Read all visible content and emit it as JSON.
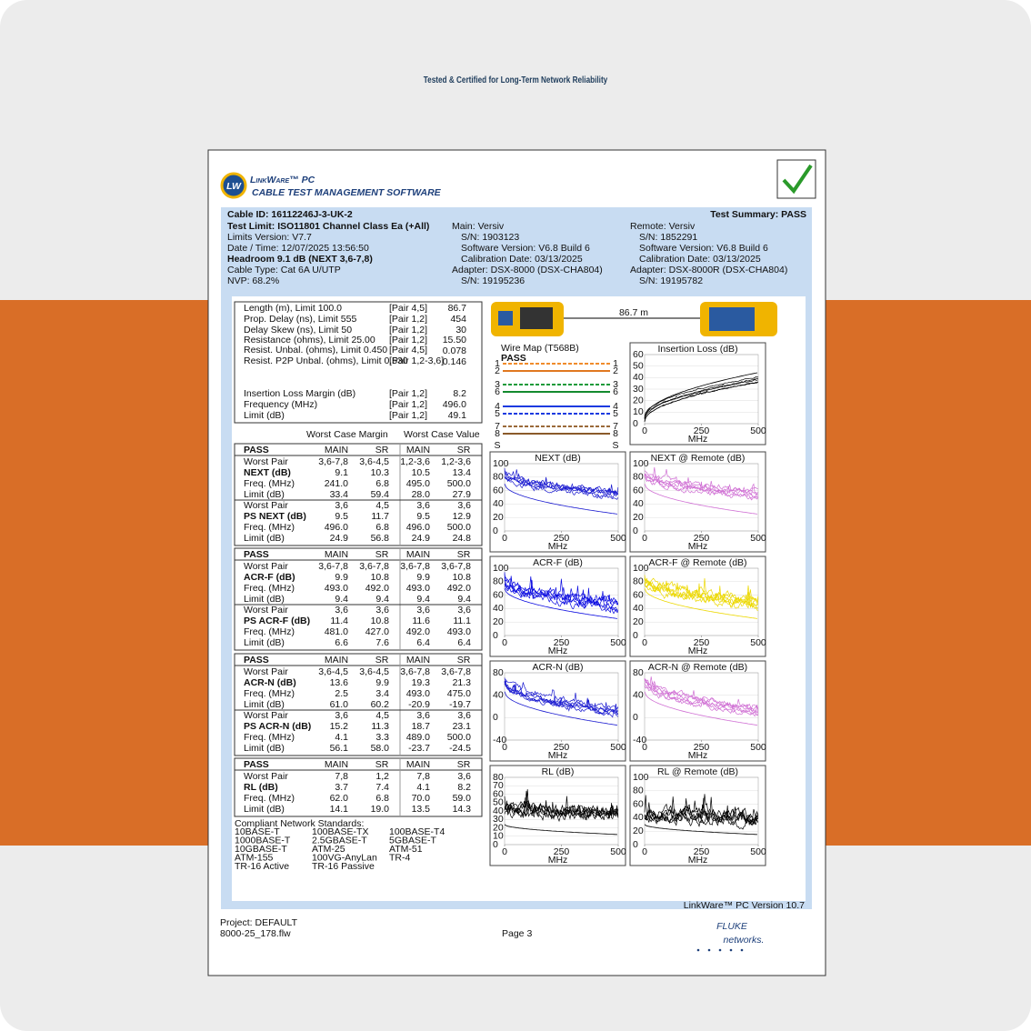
{
  "title": "Tested & Certified for Long-Term Network Reliability",
  "report": {
    "logo": {
      "badge": "LW",
      "name": "LinkWare™ PC",
      "tagline": "CABLE TEST MANAGEMENT SOFTWARE"
    },
    "header": {
      "cable_id": "Cable ID: 16112246J-3-UK-2",
      "summary": "Test Summary: PASS",
      "test": [
        "Test Limit: ISO11801 Channel Class Ea (+All)",
        "Limits Version: V7.7",
        "Date / Time: 12/07/2025  13:56:50",
        "Headroom 9.1 dB (NEXT 3,6-7,8)",
        "Cable Type: Cat 6A U/UTP",
        "NVP: 68.2%"
      ],
      "main": [
        "Main: Versiv",
        "S/N: 1903123",
        "Software Version: V6.8 Build 6",
        "Calibration Date: 03/13/2025",
        "Adapter: DSX-8000 (DSX-CHA804)",
        "S/N: 19195236"
      ],
      "remote": [
        "Remote: Versiv",
        "S/N: 1852291",
        "Software Version: V6.8 Build 6",
        "Calibration Date: 03/13/2025",
        "Adapter: DSX-8000R (DSX-CHA804)",
        "S/N: 19195782"
      ]
    },
    "measurements": [
      [
        "Length (m), Limit 100.0",
        "[Pair 4,5]",
        "86.7"
      ],
      [
        "Prop. Delay (ns), Limit 555",
        "[Pair 1,2]",
        "454"
      ],
      [
        "Delay Skew (ns), Limit 50",
        "[Pair 1,2]",
        "30"
      ],
      [
        "Resistance (ohms), Limit 25.00",
        "[Pair 1,2]",
        "15.50"
      ],
      [
        "Resist. Unbal. (ohms), Limit 0.450",
        "[Pair 4,5]",
        "0.078"
      ],
      [
        "Resist. P2P Unbal. (ohms), Limit 0.530",
        "[Pair 1,2-3,6]",
        "0.146"
      ],
      [
        "Insertion Loss Margin (dB)",
        "[Pair 1,2]",
        "8.2"
      ],
      [
        "Frequency (MHz)",
        "[Pair 1,2]",
        "496.0"
      ],
      [
        "Limit (dB)",
        "[Pair 1,2]",
        "49.1"
      ]
    ],
    "column_groups": [
      "Worst Case Margin",
      "Worst Case Value"
    ],
    "tables": [
      {
        "header": [
          "PASS",
          "MAIN",
          "SR",
          "MAIN",
          "SR"
        ],
        "rows": [
          [
            "Worst Pair",
            "3,6-7,8",
            "3,6-4,5",
            "1,2-3,6",
            "1,2-3,6"
          ],
          [
            "NEXT (dB)",
            "9.1",
            "10.3",
            "10.5",
            "13.4"
          ],
          [
            "Freq. (MHz)",
            "241.0",
            "6.8",
            "495.0",
            "500.0"
          ],
          [
            "Limit (dB)",
            "33.4",
            "59.4",
            "28.0",
            "27.9"
          ],
          [
            "Worst Pair",
            "3,6",
            "4,5",
            "3,6",
            "3,6"
          ],
          [
            "PS NEXT (dB)",
            "9.5",
            "11.7",
            "9.5",
            "12.9"
          ],
          [
            "Freq. (MHz)",
            "496.0",
            "6.8",
            "496.0",
            "500.0"
          ],
          [
            "Limit (dB)",
            "24.9",
            "56.8",
            "24.9",
            "24.8"
          ]
        ]
      },
      {
        "header": [
          "PASS",
          "MAIN",
          "SR",
          "MAIN",
          "SR"
        ],
        "rows": [
          [
            "Worst Pair",
            "3,6-7,8",
            "3,6-7,8",
            "3,6-7,8",
            "3,6-7,8"
          ],
          [
            "ACR-F (dB)",
            "9.9",
            "10.8",
            "9.9",
            "10.8"
          ],
          [
            "Freq. (MHz)",
            "493.0",
            "492.0",
            "493.0",
            "492.0"
          ],
          [
            "Limit (dB)",
            "9.4",
            "9.4",
            "9.4",
            "9.4"
          ],
          [
            "Worst Pair",
            "3,6",
            "3,6",
            "3,6",
            "3,6"
          ],
          [
            "PS ACR-F (dB)",
            "11.4",
            "10.8",
            "11.6",
            "11.1"
          ],
          [
            "Freq. (MHz)",
            "481.0",
            "427.0",
            "492.0",
            "493.0"
          ],
          [
            "Limit (dB)",
            "6.6",
            "7.6",
            "6.4",
            "6.4"
          ]
        ]
      },
      {
        "header": [
          "PASS",
          "MAIN",
          "SR",
          "MAIN",
          "SR"
        ],
        "rows": [
          [
            "Worst Pair",
            "3,6-4,5",
            "3,6-4,5",
            "3,6-7,8",
            "3,6-7,8"
          ],
          [
            "ACR-N (dB)",
            "13.6",
            "9.9",
            "19.3",
            "21.3"
          ],
          [
            "Freq. (MHz)",
            "2.5",
            "3.4",
            "493.0",
            "475.0"
          ],
          [
            "Limit (dB)",
            "61.0",
            "60.2",
            "-20.9",
            "-19.7"
          ],
          [
            "Worst Pair",
            "3,6",
            "4,5",
            "3,6",
            "3,6"
          ],
          [
            "PS ACR-N (dB)",
            "15.2",
            "11.3",
            "18.7",
            "23.1"
          ],
          [
            "Freq. (MHz)",
            "4.1",
            "3.3",
            "489.0",
            "500.0"
          ],
          [
            "Limit (dB)",
            "56.1",
            "58.0",
            "-23.7",
            "-24.5"
          ]
        ]
      },
      {
        "header": [
          "PASS",
          "MAIN",
          "SR",
          "MAIN",
          "SR"
        ],
        "rows": [
          [
            "Worst Pair",
            "7,8",
            "1,2",
            "7,8",
            "3,6"
          ],
          [
            "RL (dB)",
            "3.7",
            "7.4",
            "4.1",
            "8.2"
          ],
          [
            "Freq. (MHz)",
            "62.0",
            "6.8",
            "70.0",
            "59.0"
          ],
          [
            "Limit (dB)",
            "14.1",
            "19.0",
            "13.5",
            "14.3"
          ]
        ]
      }
    ],
    "standards": {
      "title": "Compliant Network Standards:",
      "items": [
        "10BASE-T",
        "100BASE-TX",
        "100BASE-T4",
        "1000BASE-T",
        "2.5GBASE-T",
        "5GBASE-T",
        "10GBASE-T",
        "ATM-25",
        "ATM-51",
        "ATM-155",
        "100VG-AnyLan",
        "TR-4",
        "TR-16 Active",
        "TR-16 Passive"
      ]
    },
    "link": {
      "length": "86.7 m"
    },
    "wire_map": {
      "title": "Wire Map (T568B)",
      "result": "PASS",
      "pins": [
        "1",
        "2",
        "3",
        "6",
        "4",
        "5",
        "7",
        "8"
      ],
      "shield": "S"
    },
    "plots": [
      {
        "title": "Insertion Loss (dB)",
        "yticks": [
          0,
          10,
          20,
          30,
          40,
          50,
          60
        ],
        "xticks": [
          0,
          250,
          500
        ],
        "x_label": "MHz",
        "color": "#000000"
      },
      {
        "title": "NEXT (dB)",
        "yticks": [
          0,
          20,
          40,
          60,
          80,
          100
        ],
        "xticks": [
          0,
          250,
          500
        ],
        "x_label": "MHz",
        "color": "#1a1ad0"
      },
      {
        "title": "NEXT @ Remote (dB)",
        "yticks": [
          0,
          20,
          40,
          60,
          80,
          100
        ],
        "xticks": [
          0,
          250,
          500
        ],
        "x_label": "MHz",
        "color": "#d070d4"
      },
      {
        "title": "ACR-F (dB)",
        "yticks": [
          0,
          20,
          40,
          60,
          80,
          100
        ],
        "xticks": [
          0,
          250,
          500
        ],
        "x_label": "MHz",
        "color": "#0a0ae0"
      },
      {
        "title": "ACR-F @ Remote (dB)",
        "yticks": [
          0,
          20,
          40,
          60,
          80,
          100
        ],
        "xticks": [
          0,
          250,
          500
        ],
        "x_label": "MHz",
        "color": "#ecd800"
      },
      {
        "title": "ACR-N (dB)",
        "yticks": [
          -40,
          0,
          40,
          80
        ],
        "xticks": [
          0,
          250,
          500
        ],
        "x_label": "MHz",
        "color": "#1a1ad0"
      },
      {
        "title": "ACR-N @ Remote (dB)",
        "yticks": [
          -40,
          0,
          40,
          80
        ],
        "xticks": [
          0,
          250,
          500
        ],
        "x_label": "MHz",
        "color": "#d070d4"
      },
      {
        "title": "RL (dB)",
        "yticks": [
          0,
          10,
          20,
          30,
          40,
          50,
          60,
          70,
          80
        ],
        "xticks": [
          0,
          250,
          500
        ],
        "x_label": "MHz",
        "color": "#000000"
      },
      {
        "title": "RL @ Remote (dB)",
        "yticks": [
          0,
          20,
          40,
          60,
          80,
          100
        ],
        "xticks": [
          0,
          250,
          500
        ],
        "x_label": "MHz",
        "color": "#000000"
      }
    ],
    "version": "LinkWare™ PC Version 10.7",
    "footer": {
      "project": "Project: DEFAULT",
      "file": "8000-25_178.flw",
      "page": "Page 3",
      "brand": "FLUKE",
      "brand_sub": "networks."
    }
  }
}
